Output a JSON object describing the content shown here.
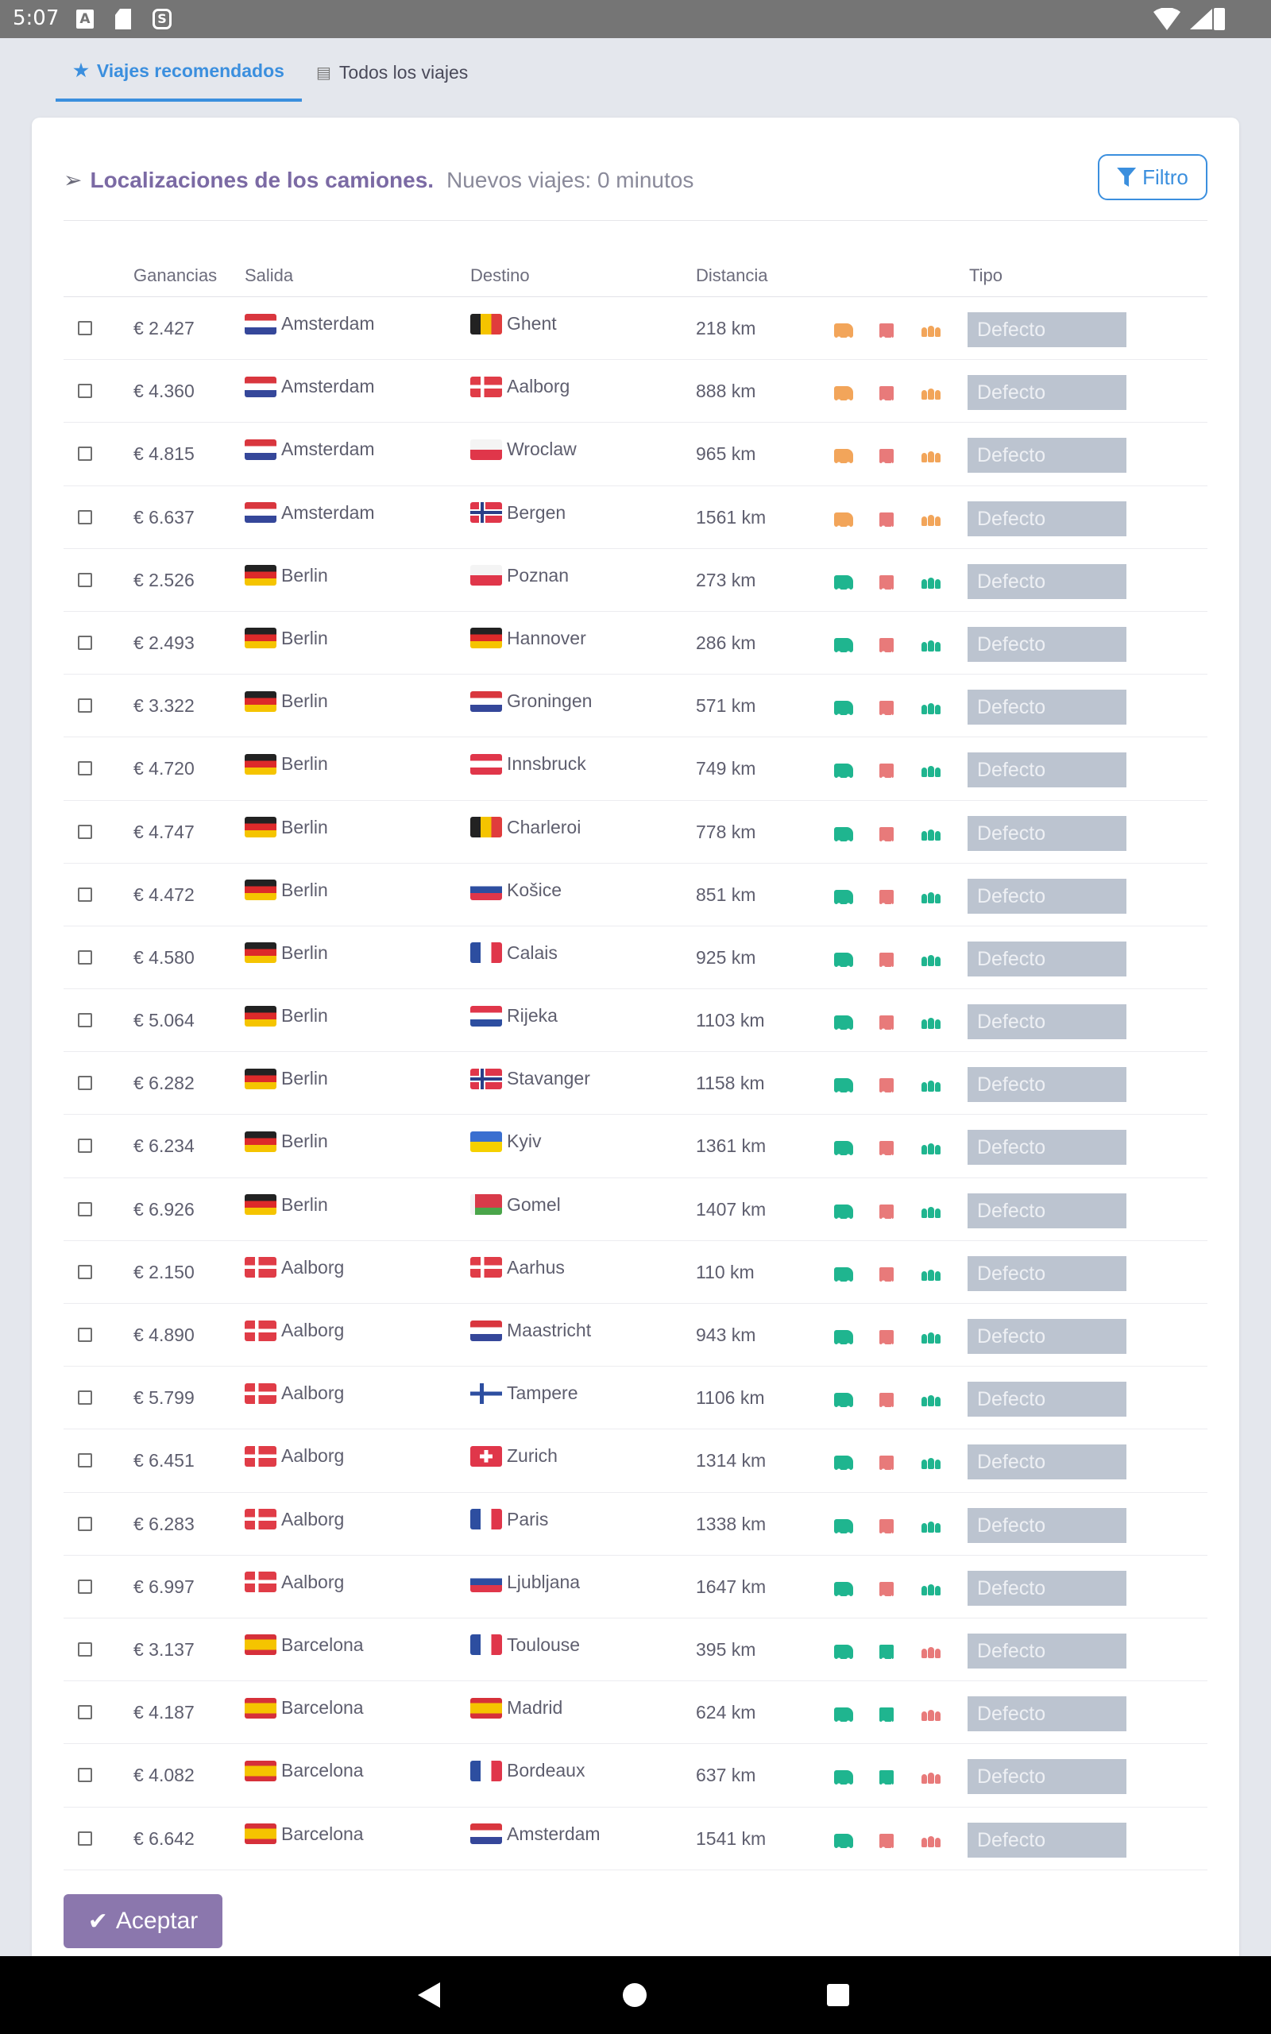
{
  "status_bar": {
    "time": "5:07",
    "icons": [
      "a-app-icon",
      "sd-card-icon",
      "s-app-icon",
      "wifi-icon",
      "cell-signal-icon",
      "battery-icon"
    ]
  },
  "tabs": [
    {
      "label": "Viajes recomendados",
      "icon": "star-icon",
      "active": true
    },
    {
      "label": "Todos los viajes",
      "icon": "list-icon",
      "active": false
    }
  ],
  "card": {
    "title": "Localizaciones de los camiones.",
    "subtitle": "Nuevos viajes: 0 minutos",
    "filter_label": "Filtro"
  },
  "table": {
    "headers": {
      "ganancias": "Ganancias",
      "salida": "Salida",
      "destino": "Destino",
      "distancia": "Distancia",
      "tipo": "Tipo"
    },
    "rows": [
      {
        "ganancias": "€ 2.427",
        "salida": "Amsterdam",
        "salida_flag": "nl",
        "destino": "Ghent",
        "destino_flag": "be",
        "distancia": "218 km",
        "icons": [
          "orange",
          "red",
          "orange"
        ],
        "tipo": "Defecto"
      },
      {
        "ganancias": "€ 4.360",
        "salida": "Amsterdam",
        "salida_flag": "nl",
        "destino": "Aalborg",
        "destino_flag": "dk",
        "distancia": "888 km",
        "icons": [
          "orange",
          "red",
          "orange"
        ],
        "tipo": "Defecto"
      },
      {
        "ganancias": "€ 4.815",
        "salida": "Amsterdam",
        "salida_flag": "nl",
        "destino": "Wroclaw",
        "destino_flag": "pl",
        "distancia": "965 km",
        "icons": [
          "orange",
          "red",
          "orange"
        ],
        "tipo": "Defecto"
      },
      {
        "ganancias": "€ 6.637",
        "salida": "Amsterdam",
        "salida_flag": "nl",
        "destino": "Bergen",
        "destino_flag": "no",
        "distancia": "1561 km",
        "icons": [
          "orange",
          "red",
          "orange"
        ],
        "tipo": "Defecto"
      },
      {
        "ganancias": "€ 2.526",
        "salida": "Berlin",
        "salida_flag": "de",
        "destino": "Poznan",
        "destino_flag": "pl",
        "distancia": "273 km",
        "icons": [
          "green",
          "red",
          "green"
        ],
        "tipo": "Defecto"
      },
      {
        "ganancias": "€ 2.493",
        "salida": "Berlin",
        "salida_flag": "de",
        "destino": "Hannover",
        "destino_flag": "de",
        "distancia": "286 km",
        "icons": [
          "green",
          "red",
          "green"
        ],
        "tipo": "Defecto"
      },
      {
        "ganancias": "€ 3.322",
        "salida": "Berlin",
        "salida_flag": "de",
        "destino": "Groningen",
        "destino_flag": "nl",
        "distancia": "571 km",
        "icons": [
          "green",
          "red",
          "green"
        ],
        "tipo": "Defecto"
      },
      {
        "ganancias": "€ 4.720",
        "salida": "Berlin",
        "salida_flag": "de",
        "destino": "Innsbruck",
        "destino_flag": "at",
        "distancia": "749 km",
        "icons": [
          "green",
          "red",
          "green"
        ],
        "tipo": "Defecto"
      },
      {
        "ganancias": "€ 4.747",
        "salida": "Berlin",
        "salida_flag": "de",
        "destino": "Charleroi",
        "destino_flag": "be",
        "distancia": "778 km",
        "icons": [
          "green",
          "red",
          "green"
        ],
        "tipo": "Defecto"
      },
      {
        "ganancias": "€ 4.472",
        "salida": "Berlin",
        "salida_flag": "de",
        "destino": "Košice",
        "destino_flag": "sk",
        "distancia": "851 km",
        "icons": [
          "green",
          "red",
          "green"
        ],
        "tipo": "Defecto"
      },
      {
        "ganancias": "€ 4.580",
        "salida": "Berlin",
        "salida_flag": "de",
        "destino": "Calais",
        "destino_flag": "fr",
        "distancia": "925 km",
        "icons": [
          "green",
          "red",
          "green"
        ],
        "tipo": "Defecto"
      },
      {
        "ganancias": "€ 5.064",
        "salida": "Berlin",
        "salida_flag": "de",
        "destino": "Rijeka",
        "destino_flag": "hr",
        "distancia": "1103 km",
        "icons": [
          "green",
          "red",
          "green"
        ],
        "tipo": "Defecto"
      },
      {
        "ganancias": "€ 6.282",
        "salida": "Berlin",
        "salida_flag": "de",
        "destino": "Stavanger",
        "destino_flag": "no",
        "distancia": "1158 km",
        "icons": [
          "green",
          "red",
          "green"
        ],
        "tipo": "Defecto"
      },
      {
        "ganancias": "€ 6.234",
        "salida": "Berlin",
        "salida_flag": "de",
        "destino": "Kyiv",
        "destino_flag": "ua",
        "distancia": "1361 km",
        "icons": [
          "green",
          "red",
          "green"
        ],
        "tipo": "Defecto"
      },
      {
        "ganancias": "€ 6.926",
        "salida": "Berlin",
        "salida_flag": "de",
        "destino": "Gomel",
        "destino_flag": "by",
        "distancia": "1407 km",
        "icons": [
          "green",
          "red",
          "green"
        ],
        "tipo": "Defecto"
      },
      {
        "ganancias": "€ 2.150",
        "salida": "Aalborg",
        "salida_flag": "dk",
        "destino": "Aarhus",
        "destino_flag": "dk",
        "distancia": "110 km",
        "icons": [
          "green",
          "red",
          "green"
        ],
        "tipo": "Defecto"
      },
      {
        "ganancias": "€ 4.890",
        "salida": "Aalborg",
        "salida_flag": "dk",
        "destino": "Maastricht",
        "destino_flag": "nl",
        "distancia": "943 km",
        "icons": [
          "green",
          "red",
          "green"
        ],
        "tipo": "Defecto"
      },
      {
        "ganancias": "€ 5.799",
        "salida": "Aalborg",
        "salida_flag": "dk",
        "destino": "Tampere",
        "destino_flag": "fi",
        "distancia": "1106 km",
        "icons": [
          "green",
          "red",
          "green"
        ],
        "tipo": "Defecto"
      },
      {
        "ganancias": "€ 6.451",
        "salida": "Aalborg",
        "salida_flag": "dk",
        "destino": "Zurich",
        "destino_flag": "ch",
        "distancia": "1314 km",
        "icons": [
          "green",
          "red",
          "green"
        ],
        "tipo": "Defecto"
      },
      {
        "ganancias": "€ 6.283",
        "salida": "Aalborg",
        "salida_flag": "dk",
        "destino": "Paris",
        "destino_flag": "fr",
        "distancia": "1338 km",
        "icons": [
          "green",
          "red",
          "green"
        ],
        "tipo": "Defecto"
      },
      {
        "ganancias": "€ 6.997",
        "salida": "Aalborg",
        "salida_flag": "dk",
        "destino": "Ljubljana",
        "destino_flag": "si",
        "distancia": "1647 km",
        "icons": [
          "green",
          "red",
          "green"
        ],
        "tipo": "Defecto"
      },
      {
        "ganancias": "€ 3.137",
        "salida": "Barcelona",
        "salida_flag": "es",
        "destino": "Toulouse",
        "destino_flag": "fr",
        "distancia": "395 km",
        "icons": [
          "green",
          "green",
          "red"
        ],
        "tipo": "Defecto"
      },
      {
        "ganancias": "€ 4.187",
        "salida": "Barcelona",
        "salida_flag": "es",
        "destino": "Madrid",
        "destino_flag": "es",
        "distancia": "624 km",
        "icons": [
          "green",
          "green",
          "red"
        ],
        "tipo": "Defecto"
      },
      {
        "ganancias": "€ 4.082",
        "salida": "Barcelona",
        "salida_flag": "es",
        "destino": "Bordeaux",
        "destino_flag": "fr",
        "distancia": "637 km",
        "icons": [
          "green",
          "green",
          "red"
        ],
        "tipo": "Defecto"
      },
      {
        "ganancias": "€ 6.642",
        "salida": "Barcelona",
        "salida_flag": "es",
        "destino": "Amsterdam",
        "destino_flag": "nl",
        "distancia": "1541 km",
        "icons": [
          "green",
          "red",
          "red"
        ],
        "tipo": "Defecto"
      }
    ]
  },
  "accept_label": "Aceptar",
  "colors": {
    "accent": "#3b8fde",
    "title": "#7b6aa4",
    "accept": "#8b77ad",
    "orange": "#f2a55a",
    "red": "#e87a7a",
    "green": "#1fb58f",
    "tipo_bg": "#bcc4d0"
  },
  "nav": {
    "icons": [
      "back-icon",
      "home-icon",
      "recents-icon"
    ]
  }
}
